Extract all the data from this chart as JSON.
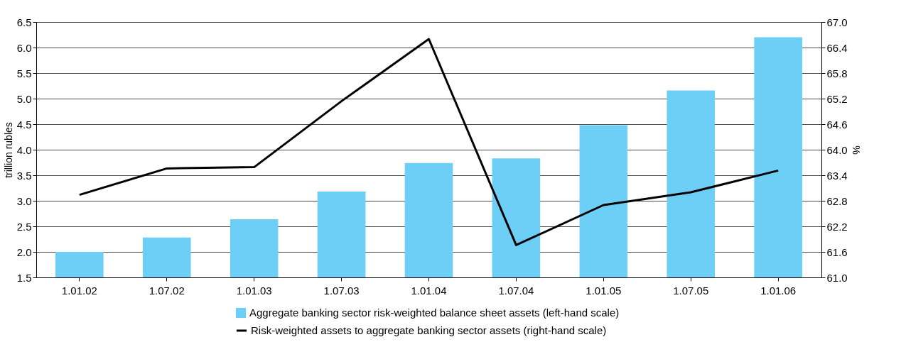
{
  "chart_data": {
    "type": "bar",
    "ylabel": "trillion rubles",
    "y2label": "%",
    "categories": [
      "1.01.02",
      "1.07.02",
      "1.01.03",
      "1.07.03",
      "1.01.04",
      "1.07.04",
      "1.01.05",
      "1.07.05",
      "1.01.06"
    ],
    "series": [
      {
        "name": "Aggregate banking sector risk-weighted balance sheet assets (left-hand scale)",
        "color": "#6dcff6",
        "values": [
          2.0,
          2.28,
          2.64,
          3.18,
          3.74,
          3.83,
          4.48,
          5.16,
          6.2
        ]
      },
      {
        "name": "Risk-weighted assets to aggregate banking sector assets (right-hand scale)",
        "type": "line",
        "axis": "y2",
        "color": "#000000",
        "values": [
          62.94,
          63.56,
          63.59,
          65.14,
          66.6,
          61.76,
          62.7,
          63.0,
          63.51
        ]
      }
    ],
    "ylim": [
      1.5,
      6.5
    ],
    "yticks": [
      1.5,
      {
        "value": 2,
        "label": "2.0"
      },
      2.5,
      {
        "value": 3,
        "label": "3.0"
      },
      3.5,
      {
        "value": 4,
        "label": "4.0"
      },
      4.5,
      {
        "value": 5,
        "label": "5.0"
      },
      5.5,
      {
        "value": 6,
        "label": "6.0"
      },
      6.5
    ],
    "y2lim": [
      61,
      67
    ],
    "y2ticks": [
      {
        "value": 61,
        "label": "61.0"
      },
      61.6,
      62.2,
      62.8,
      63.4,
      {
        "value": 64,
        "label": "64.0"
      },
      64.6,
      65.2,
      65.8,
      66.4,
      {
        "value": 67,
        "label": "67.0"
      }
    ],
    "grid": "y",
    "legend": "bottom",
    "marker": "none",
    "line_style": "solid"
  }
}
